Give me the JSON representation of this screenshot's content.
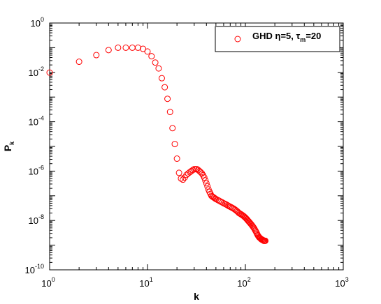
{
  "chart_data": {
    "type": "scatter",
    "xlabel": "k",
    "ylabel": "P",
    "ylabel_sub": "k",
    "xscale": "log",
    "yscale": "log",
    "xlim": [
      1,
      1000
    ],
    "ylim": [
      1e-10,
      1
    ],
    "grid": false,
    "legend_position": "top-right",
    "x_ticks": [
      {
        "value": 1,
        "base": "10",
        "exp": "0"
      },
      {
        "value": 10,
        "base": "10",
        "exp": "1"
      },
      {
        "value": 100,
        "base": "10",
        "exp": "2"
      },
      {
        "value": 1000,
        "base": "10",
        "exp": "3"
      }
    ],
    "y_ticks": [
      {
        "value": 1,
        "base": "10",
        "exp": "0"
      },
      {
        "value": 0.01,
        "base": "10",
        "exp": "-2"
      },
      {
        "value": 0.0001,
        "base": "10",
        "exp": "-4"
      },
      {
        "value": 1e-06,
        "base": "10",
        "exp": "-6"
      },
      {
        "value": 1e-08,
        "base": "10",
        "exp": "-8"
      },
      {
        "value": 1e-10,
        "base": "10",
        "exp": "-10"
      }
    ],
    "series": [
      {
        "name": "GHD η=5, τm=20",
        "legend_parts": [
          "GHD η=5, τ",
          "m",
          "=20"
        ],
        "color": "#ff0000",
        "marker": "open-circle",
        "x": [
          1,
          2,
          3,
          4,
          5,
          6,
          7,
          8,
          9,
          10,
          11,
          12,
          13,
          14,
          15,
          16,
          17,
          18,
          19,
          20,
          21,
          22,
          23,
          24,
          25,
          26,
          27,
          28,
          29,
          30,
          31,
          32,
          33,
          34,
          35,
          36,
          37,
          38,
          39,
          40,
          41,
          42,
          43,
          44,
          45,
          46,
          47,
          48,
          49,
          50,
          52,
          54,
          56,
          58,
          60,
          62,
          64,
          66,
          68,
          70,
          72,
          74,
          76,
          78,
          80,
          82,
          84,
          86,
          88,
          90,
          92,
          94,
          96,
          98,
          100,
          102,
          104,
          106,
          108,
          110,
          112,
          114,
          116,
          118,
          120,
          122,
          124,
          126,
          128,
          130,
          132,
          134,
          136,
          138,
          140,
          142,
          144,
          146,
          148,
          150,
          152,
          154,
          156,
          158,
          160
        ],
        "y": [
          0.0098,
          0.027,
          0.05,
          0.08,
          0.1,
          0.1,
          0.1,
          0.1,
          0.09,
          0.07,
          0.045,
          0.025,
          0.0145,
          0.0058,
          0.0025,
          0.00085,
          0.00025,
          5.5e-05,
          1.25e-05,
          3.2e-06,
          8.5e-07,
          5e-07,
          4.5e-07,
          5.5e-07,
          7e-07,
          8e-07,
          9e-07,
          1e-06,
          1.1e-06,
          1.2e-06,
          1.2e-06,
          1.2e-06,
          1.1e-06,
          1e-06,
          9e-07,
          8e-07,
          6.8e-07,
          5.5e-07,
          4.2e-07,
          3.2e-07,
          2.4e-07,
          1.8e-07,
          1.45e-07,
          1.2e-07,
          1e-07,
          9.3e-08,
          8.8e-08,
          8.3e-08,
          7.8e-08,
          7.4e-08,
          6.8e-08,
          6.3e-08,
          5.8e-08,
          5.4e-08,
          5e-08,
          4.7e-08,
          4.4e-08,
          4.1e-08,
          3.8e-08,
          3.6e-08,
          3.4e-08,
          3.2e-08,
          3e-08,
          2.8e-08,
          2.6e-08,
          2.4e-08,
          2.2e-08,
          2e-08,
          1.9e-08,
          1.8e-08,
          1.7e-08,
          1.6e-08,
          1.5e-08,
          1.4e-08,
          1.3e-08,
          1.2e-08,
          1.1e-08,
          1e-08,
          9.2e-09,
          8.5e-09,
          7.8e-09,
          7.2e-09,
          6.6e-09,
          6e-09,
          5.5e-09,
          5e-09,
          4.5e-09,
          4e-09,
          3.6e-09,
          3.2e-09,
          2.8e-09,
          2.5e-09,
          2.3e-09,
          2.1e-09,
          2e-09,
          1.9e-09,
          1.8e-09,
          1.7e-09,
          1.7e-09,
          1.6e-09,
          1.6e-09,
          1.5e-09,
          1.5e-09,
          1.5e-09,
          1.5e-09
        ]
      }
    ]
  }
}
